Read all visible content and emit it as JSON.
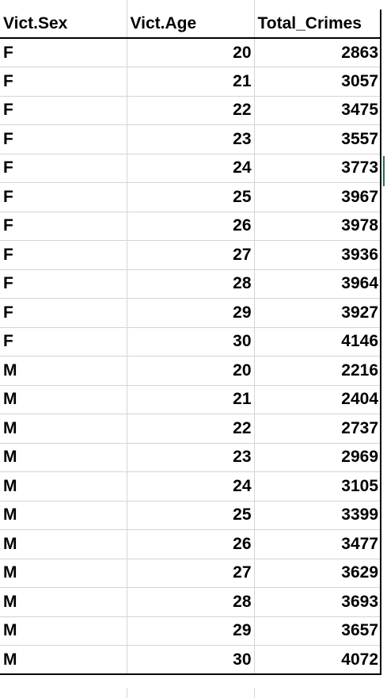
{
  "table": {
    "headers": [
      "Vict.Sex",
      "Vict.Age",
      "Total_Crimes"
    ],
    "rows": [
      [
        "F",
        "20",
        "2863"
      ],
      [
        "F",
        "21",
        "3057"
      ],
      [
        "F",
        "22",
        "3475"
      ],
      [
        "F",
        "23",
        "3557"
      ],
      [
        "F",
        "24",
        "3773"
      ],
      [
        "F",
        "25",
        "3967"
      ],
      [
        "F",
        "26",
        "3978"
      ],
      [
        "F",
        "27",
        "3936"
      ],
      [
        "F",
        "28",
        "3964"
      ],
      [
        "F",
        "29",
        "3927"
      ],
      [
        "F",
        "30",
        "4146"
      ],
      [
        "M",
        "20",
        "2216"
      ],
      [
        "M",
        "21",
        "2404"
      ],
      [
        "M",
        "22",
        "2737"
      ],
      [
        "M",
        "23",
        "2969"
      ],
      [
        "M",
        "24",
        "3105"
      ],
      [
        "M",
        "25",
        "3399"
      ],
      [
        "M",
        "26",
        "3477"
      ],
      [
        "M",
        "27",
        "3629"
      ],
      [
        "M",
        "28",
        "3693"
      ],
      [
        "M",
        "29",
        "3657"
      ],
      [
        "M",
        "30",
        "4072"
      ]
    ]
  },
  "colors": {
    "gridline": "#d4d4d4",
    "border": "#000000",
    "selection_accent": "#217346"
  }
}
